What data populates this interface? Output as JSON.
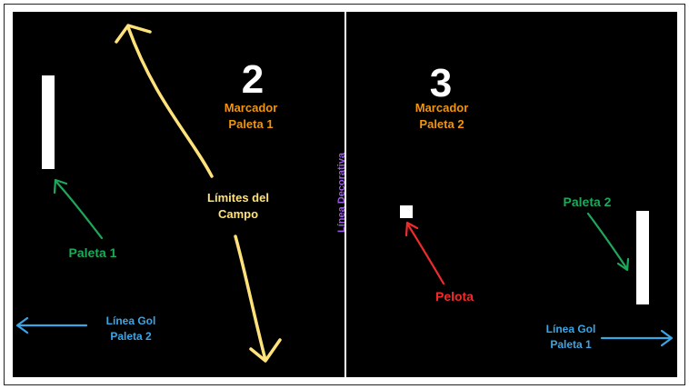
{
  "scores": {
    "left": "2",
    "right": "3"
  },
  "labels": {
    "score_left_line1": "Marcador",
    "score_left_line2": "Paleta 1",
    "score_right_line1": "Marcador",
    "score_right_line2": "Paleta 2",
    "limits_line1": "Límites del",
    "limits_line2": "Campo",
    "paddle_left": "Paleta 1",
    "paddle_right": "Paleta 2",
    "ball": "Pelota",
    "goal_left_line1": "Línea Gol",
    "goal_left_line2": "Paleta 2",
    "goal_right_line1": "Línea Gol",
    "goal_right_line2": "Paleta 1",
    "center_line": "Línea Decorativa"
  },
  "colors": {
    "background": "#000000",
    "paddle": "#ffffff",
    "score_label": "#f2940c",
    "limits": "#ffe27a",
    "paddle_label": "#1ea85a",
    "ball_label": "#ef2b2b",
    "goal_label": "#3aa6e6",
    "center_label": "#9b5de5"
  }
}
